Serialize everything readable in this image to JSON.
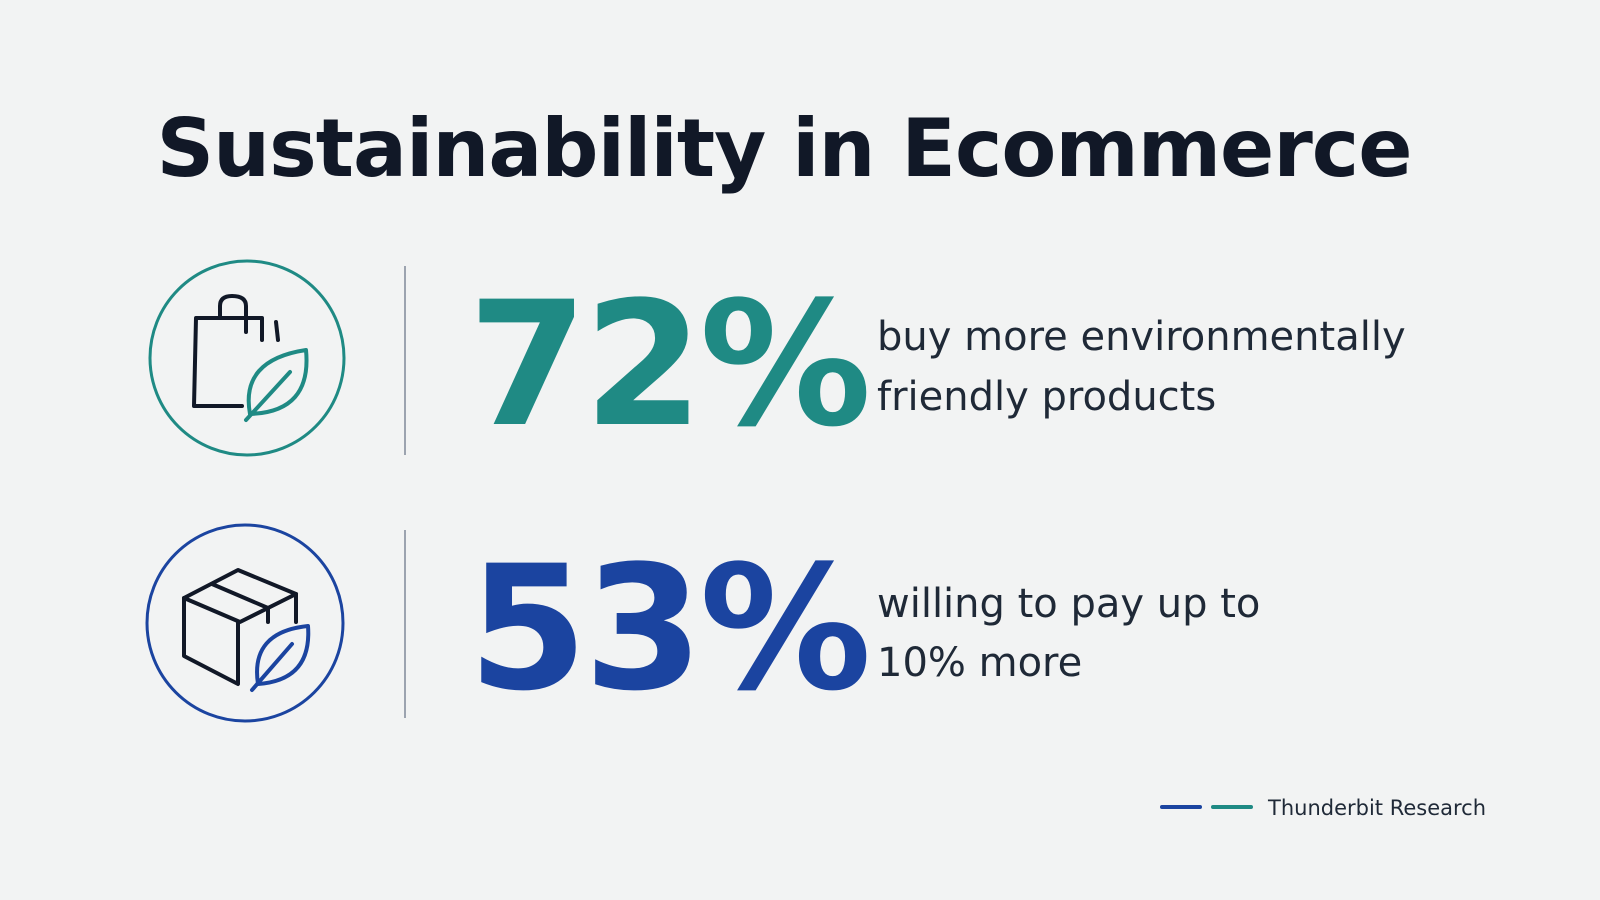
{
  "header": {
    "title": "Sustainability in Ecommerce"
  },
  "stats": [
    {
      "value": "72%",
      "lines": [
        "buy more environmentally",
        "friendly products"
      ]
    },
    {
      "value": "53%",
      "lines": [
        "willing to pay up to",
        "10% more"
      ]
    }
  ],
  "footer": {
    "source": "Thunderbit Research"
  }
}
